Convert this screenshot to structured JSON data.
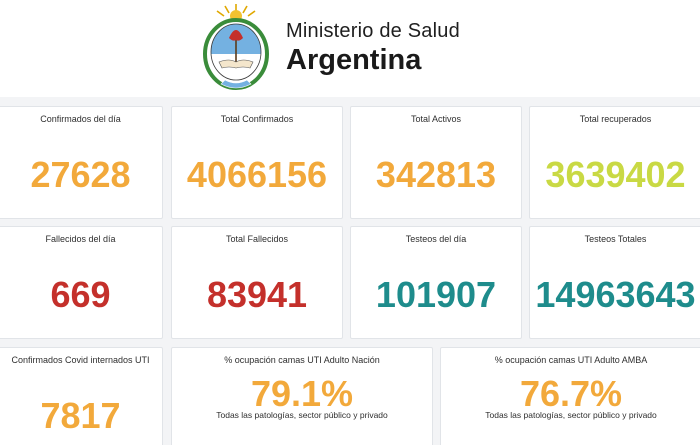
{
  "header": {
    "logo_name": "escudo-argentina",
    "brand_line1": "Ministerio de Salud",
    "brand_line2": "Argentina"
  },
  "colors": {
    "orange": "#f2a93b",
    "lime": "#c9d944",
    "red": "#c4302b",
    "teal": "#1e8c8c"
  },
  "cards": [
    {
      "label": "Confirmados del día",
      "value": "27628"
    },
    {
      "label": "Total Confirmados",
      "value": "4066156"
    },
    {
      "label": "Total Activos",
      "value": "342813"
    },
    {
      "label": "Total recuperados",
      "value": "3639402"
    },
    {
      "label": "Fallecidos del día",
      "value": "669"
    },
    {
      "label": "Total Fallecidos",
      "value": "83941"
    },
    {
      "label": "Testeos del día",
      "value": "101907"
    },
    {
      "label": "Testeos Totales",
      "value": "14963643"
    },
    {
      "label": "Confirmados Covid internados UTI",
      "value": "7817"
    },
    {
      "label": "% ocupación camas UTI Adulto Nación",
      "value": "79.1%",
      "note": "Todas las patologías, sector público y privado"
    },
    {
      "label": "% ocupación camas UTI Adulto AMBA",
      "value": "76.7%",
      "note": "Todas las patologías, sector público y privado"
    }
  ]
}
